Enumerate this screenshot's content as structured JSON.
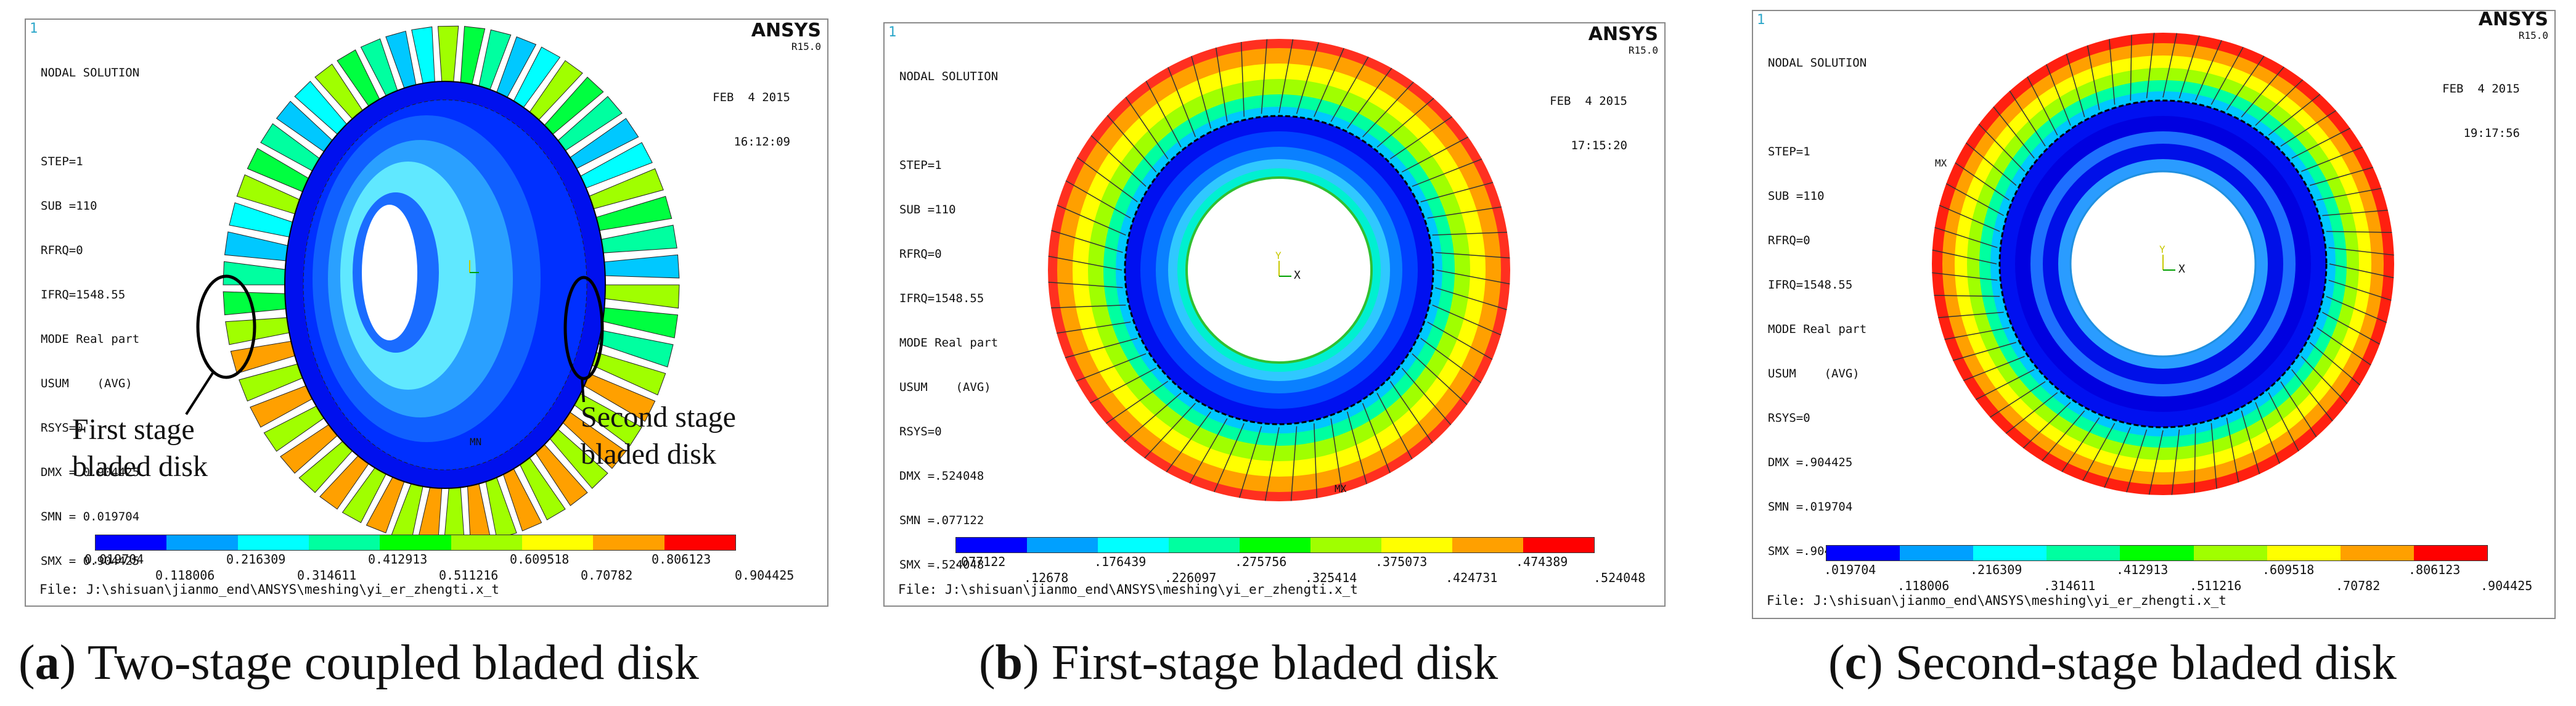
{
  "colors": {
    "contour": [
      "#0000ff",
      "#00a0ff",
      "#00ffff",
      "#00ffa0",
      "#00ff00",
      "#a0ff00",
      "#ffff00",
      "#ffa000",
      "#ff0000"
    ],
    "frame": "#8a8a8a",
    "triad_y": "#c8c800",
    "triad": "#00a000"
  },
  "panels": [
    {
      "id": "a",
      "corner": "1",
      "header": [
        "NODAL SOLUTION",
        "",
        "STEP=1",
        "SUB =110",
        "RFRQ=0",
        "IFRQ=1548.55",
        "MODE Real part",
        "USUM    (AVG)",
        "RSYS=0",
        "DMX = 0.904425",
        "SMN = 0.019704",
        "SMX = 0.904425"
      ],
      "brand": "ANSYS",
      "release": "R15.0",
      "date": "FEB  4 2015",
      "time": "16:12:09",
      "legend_top": [
        "0.019704",
        "0.216309",
        "0.412913",
        "0.609518",
        "0.806123"
      ],
      "legend_bottom": [
        "0.118006",
        "0.314611",
        "0.511216",
        "0.70782",
        "0.904425"
      ],
      "file": "File: J:\\shisuan\\jianmo_end\\ANSYS\\meshing\\yi_er_zhengti.x_t",
      "caption_letter": "a",
      "caption_text": "Two-stage coupled bladed disk",
      "marker": "MN",
      "annotations": {
        "first": "First stage bladed disk",
        "second": "Second stage bladed disk"
      }
    },
    {
      "id": "b",
      "corner": "1",
      "header": [
        "NODAL SOLUTION",
        "",
        "STEP=1",
        "SUB =110",
        "RFRQ=0",
        "IFRQ=1548.55",
        "MODE Real part",
        "USUM    (AVG)",
        "RSYS=0",
        "DMX =.524048",
        "SMN =.077122",
        "SMX =.524048"
      ],
      "brand": "ANSYS",
      "release": "R15.0",
      "date": "FEB  4 2015",
      "time": "17:15:20",
      "legend_top": [
        ".077122",
        ".176439",
        ".275756",
        ".375073",
        ".474389"
      ],
      "legend_bottom": [
        ".12678",
        ".226097",
        ".325414",
        ".424731",
        ".524048"
      ],
      "file": "File: J:\\shisuan\\jianmo_end\\ANSYS\\meshing\\yi_er_zhengti.x_t",
      "caption_letter": "b",
      "caption_text": "First-stage bladed disk",
      "axes": {
        "y": "Y",
        "x": "X"
      },
      "marker": "MX"
    },
    {
      "id": "c",
      "corner": "1",
      "header": [
        "NODAL SOLUTION",
        "",
        "STEP=1",
        "SUB =110",
        "RFRQ=0",
        "IFRQ=1548.55",
        "MODE Real part",
        "USUM    (AVG)",
        "RSYS=0",
        "DMX =.904425",
        "SMN =.019704",
        "SMX =.904425"
      ],
      "brand": "ANSYS",
      "release": "R15.0",
      "date": "FEB  4 2015",
      "time": "19:17:56",
      "legend_top": [
        ".019704",
        ".216309",
        ".412913",
        ".609518",
        ".806123"
      ],
      "legend_bottom": [
        ".118006",
        ".314611",
        ".511216",
        ".70782",
        ".904425"
      ],
      "file": "File: J:\\shisuan\\jianmo_end\\ANSYS\\meshing\\yi_er_zhengti.x_t",
      "caption_letter": "c",
      "caption_text": "Second-stage bladed disk",
      "axes": {
        "y": "Y",
        "x": "X"
      },
      "marker": "MX"
    }
  ]
}
